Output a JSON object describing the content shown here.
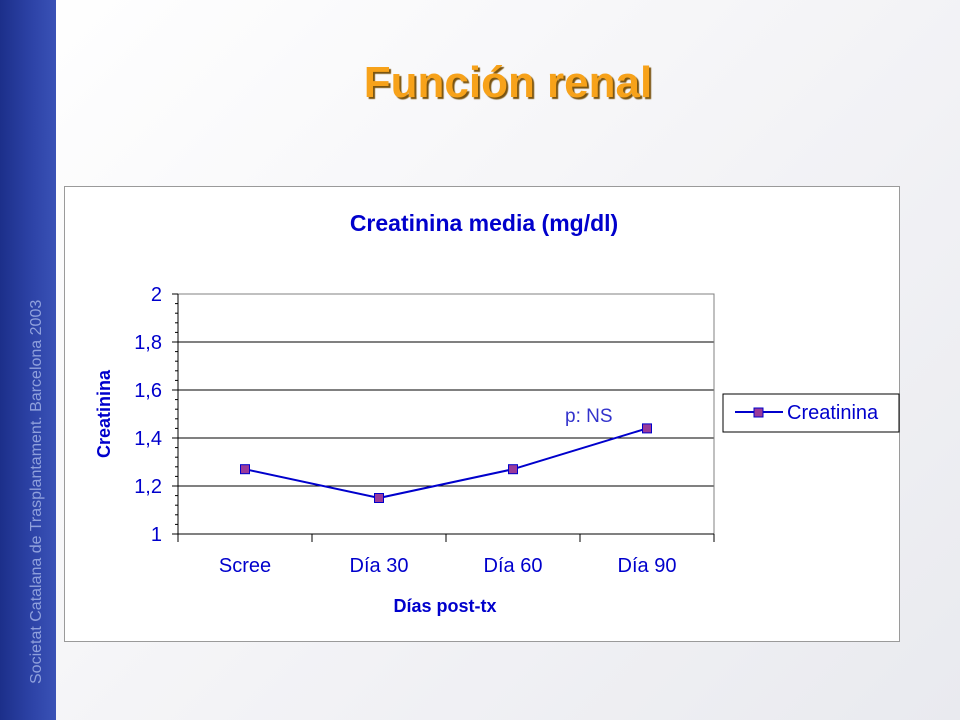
{
  "slide": {
    "title": "Función renal",
    "sidebar_text": "Societat Catalana de Trasplantament. Barcelona 2003"
  },
  "colors": {
    "title": "#f7a21a",
    "sidebar": "#2e44a8",
    "series_line": "#0000cc",
    "marker_fill": "#9a3a9a",
    "gridline": "#000000"
  },
  "chart_data": {
    "type": "line",
    "title": "Creatinina media (mg/dl)",
    "xlabel": "Días post-tx",
    "ylabel": "Creatinina",
    "categories": [
      "Scree",
      "Día 30",
      "Día 60",
      "Día 90"
    ],
    "series": [
      {
        "name": "Creatinina",
        "values": [
          1.27,
          1.15,
          1.27,
          1.44
        ]
      }
    ],
    "ylim": [
      1,
      2
    ],
    "yticks": [
      "1",
      "1,2",
      "1,4",
      "1,6",
      "1,8",
      "2"
    ],
    "grid": true,
    "legend": "right",
    "annotation": "p: NS"
  }
}
